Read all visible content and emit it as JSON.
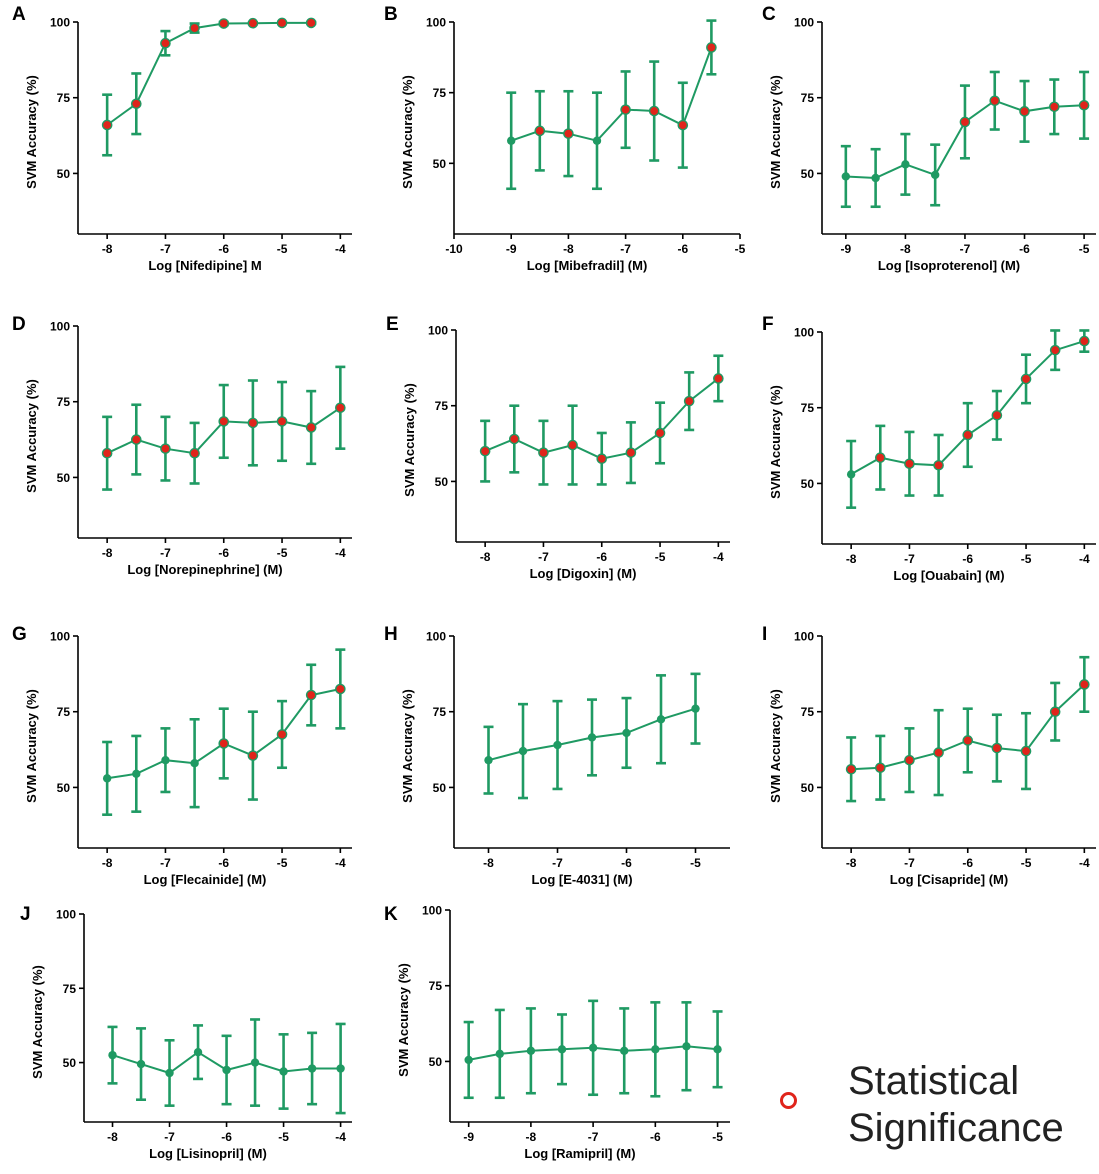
{
  "colors": {
    "line": "#1f9a63",
    "significant_fill": "#e0241b"
  },
  "legend": {
    "label": "Statistical Significance",
    "line1": "Statistical",
    "line2": "Significance"
  },
  "chart_data": [
    {
      "panel": "A",
      "type": "line",
      "xlabel": "Log [Nifedipine] M",
      "ylabel": "SVM Accuracy (%)",
      "xlim": [
        -8.5,
        -3.8
      ],
      "ylim": [
        30,
        100
      ],
      "xticks": [
        -8,
        -7,
        -6,
        -5,
        -4
      ],
      "yticks": [
        50,
        75,
        100
      ],
      "points": [
        {
          "x": -8,
          "y": 66,
          "err": 10,
          "sig": true
        },
        {
          "x": -7.5,
          "y": 73,
          "err": 10,
          "sig": true
        },
        {
          "x": -7,
          "y": 93,
          "err": 4,
          "sig": true
        },
        {
          "x": -6.5,
          "y": 98,
          "err": 1.5,
          "sig": true
        },
        {
          "x": -6,
          "y": 99.5,
          "err": 0.5,
          "sig": true
        },
        {
          "x": -5.5,
          "y": 99.6,
          "err": 0.3,
          "sig": true
        },
        {
          "x": -5,
          "y": 99.7,
          "err": 0.3,
          "sig": true
        },
        {
          "x": -4.5,
          "y": 99.7,
          "err": 0.3,
          "sig": true
        }
      ]
    },
    {
      "panel": "B",
      "type": "line",
      "xlabel": "Log [Mibefradil] (M)",
      "ylabel": "SVM Accuracy (%)",
      "xlim": [
        -10,
        -5
      ],
      "ylim": [
        25,
        100
      ],
      "xticks": [
        -10,
        -9,
        -8,
        -7,
        -6,
        -5
      ],
      "yticks": [
        50,
        75,
        100
      ],
      "points": [
        {
          "x": -9,
          "y": 58,
          "err": 17,
          "sig": false
        },
        {
          "x": -8.5,
          "y": 61.5,
          "err": 14,
          "sig": true
        },
        {
          "x": -8,
          "y": 60.5,
          "err": 15,
          "sig": true
        },
        {
          "x": -7.5,
          "y": 58,
          "err": 17,
          "sig": false
        },
        {
          "x": -7,
          "y": 69,
          "err": 13.5,
          "sig": true
        },
        {
          "x": -6.5,
          "y": 68.5,
          "err": 17.5,
          "sig": true
        },
        {
          "x": -6,
          "y": 63.5,
          "err": 15,
          "sig": true
        },
        {
          "x": -5.5,
          "y": 91,
          "err": 9.5,
          "sig": true
        }
      ]
    },
    {
      "panel": "C",
      "type": "line",
      "xlabel": "Log [Isoproterenol] (M)",
      "ylabel": "SVM Accuracy (%)",
      "xlim": [
        -9.4,
        -4.8
      ],
      "ylim": [
        30,
        100
      ],
      "xticks": [
        -9,
        -8,
        -7,
        -6,
        -5
      ],
      "yticks": [
        50,
        75,
        100
      ],
      "points": [
        {
          "x": -9,
          "y": 49,
          "err": 10,
          "sig": false
        },
        {
          "x": -8.5,
          "y": 48.5,
          "err": 9.5,
          "sig": false
        },
        {
          "x": -8,
          "y": 53,
          "err": 10,
          "sig": false
        },
        {
          "x": -7.5,
          "y": 49.5,
          "err": 10,
          "sig": false
        },
        {
          "x": -7,
          "y": 67,
          "err": 12,
          "sig": true
        },
        {
          "x": -6.5,
          "y": 74,
          "err": 9.5,
          "sig": true
        },
        {
          "x": -6,
          "y": 70.5,
          "err": 10,
          "sig": true
        },
        {
          "x": -5.5,
          "y": 72,
          "err": 9,
          "sig": true
        },
        {
          "x": -5,
          "y": 72.5,
          "err": 11,
          "sig": true
        }
      ]
    },
    {
      "panel": "D",
      "type": "line",
      "xlabel": "Log [Norepinephrine] (M)",
      "ylabel": "SVM Accuracy (%)",
      "xlim": [
        -8.5,
        -3.8
      ],
      "ylim": [
        30,
        100
      ],
      "xticks": [
        -8,
        -7,
        -6,
        -5,
        -4
      ],
      "yticks": [
        50,
        75,
        100
      ],
      "points": [
        {
          "x": -8,
          "y": 58,
          "err": 12,
          "sig": true
        },
        {
          "x": -7.5,
          "y": 62.5,
          "err": 11.5,
          "sig": true
        },
        {
          "x": -7,
          "y": 59.5,
          "err": 10.5,
          "sig": true
        },
        {
          "x": -6.5,
          "y": 58,
          "err": 10,
          "sig": true
        },
        {
          "x": -6,
          "y": 68.5,
          "err": 12,
          "sig": true
        },
        {
          "x": -5.5,
          "y": 68,
          "err": 14,
          "sig": true
        },
        {
          "x": -5,
          "y": 68.5,
          "err": 13,
          "sig": true
        },
        {
          "x": -4.5,
          "y": 66.5,
          "err": 12,
          "sig": true
        },
        {
          "x": -4,
          "y": 73,
          "err": 13.5,
          "sig": true
        }
      ]
    },
    {
      "panel": "E",
      "type": "line",
      "xlabel": "Log [Digoxin] (M)",
      "ylabel": "SVM Accuracy (%)",
      "xlim": [
        -8.5,
        -3.8
      ],
      "ylim": [
        30,
        100
      ],
      "xticks": [
        -8,
        -7,
        -6,
        -5,
        -4
      ],
      "yticks": [
        50,
        75,
        100
      ],
      "points": [
        {
          "x": -8,
          "y": 60,
          "err": 10,
          "sig": true
        },
        {
          "x": -7.5,
          "y": 64,
          "err": 11,
          "sig": true
        },
        {
          "x": -7,
          "y": 59.5,
          "err": 10.5,
          "sig": true
        },
        {
          "x": -6.5,
          "y": 62,
          "err": 13,
          "sig": true
        },
        {
          "x": -6,
          "y": 57.5,
          "err": 8.5,
          "sig": true
        },
        {
          "x": -5.5,
          "y": 59.5,
          "err": 10,
          "sig": true
        },
        {
          "x": -5,
          "y": 66,
          "err": 10,
          "sig": true
        },
        {
          "x": -4.5,
          "y": 76.5,
          "err": 9.5,
          "sig": true
        },
        {
          "x": -4,
          "y": 84,
          "err": 7.5,
          "sig": true
        }
      ]
    },
    {
      "panel": "F",
      "type": "line",
      "xlabel": "Log [Ouabain] (M)",
      "ylabel": "SVM Accuracy (%)",
      "xlim": [
        -8.5,
        -3.8
      ],
      "ylim": [
        30,
        100
      ],
      "xticks": [
        -8,
        -7,
        -6,
        -5,
        -4
      ],
      "yticks": [
        50,
        75,
        100
      ],
      "points": [
        {
          "x": -8,
          "y": 53,
          "err": 11,
          "sig": false
        },
        {
          "x": -7.5,
          "y": 58.5,
          "err": 10.5,
          "sig": true
        },
        {
          "x": -7,
          "y": 56.5,
          "err": 10.5,
          "sig": true
        },
        {
          "x": -6.5,
          "y": 56,
          "err": 10,
          "sig": true
        },
        {
          "x": -6,
          "y": 66,
          "err": 10.5,
          "sig": true
        },
        {
          "x": -5.5,
          "y": 72.5,
          "err": 8,
          "sig": true
        },
        {
          "x": -5,
          "y": 84.5,
          "err": 8,
          "sig": true
        },
        {
          "x": -4.5,
          "y": 94,
          "err": 6.5,
          "sig": true
        },
        {
          "x": -4,
          "y": 97,
          "err": 3.5,
          "sig": true
        }
      ]
    },
    {
      "panel": "G",
      "type": "line",
      "xlabel": "Log [Flecainide] (M)",
      "ylabel": "SVM Accuracy (%)",
      "xlim": [
        -8.5,
        -3.8
      ],
      "ylim": [
        30,
        100
      ],
      "xticks": [
        -8,
        -7,
        -6,
        -5,
        -4
      ],
      "yticks": [
        50,
        75,
        100
      ],
      "points": [
        {
          "x": -8,
          "y": 53,
          "err": 12,
          "sig": false
        },
        {
          "x": -7.5,
          "y": 54.5,
          "err": 12.5,
          "sig": false
        },
        {
          "x": -7,
          "y": 59,
          "err": 10.5,
          "sig": false
        },
        {
          "x": -6.5,
          "y": 58,
          "err": 14.5,
          "sig": false
        },
        {
          "x": -6,
          "y": 64.5,
          "err": 11.5,
          "sig": true
        },
        {
          "x": -5.5,
          "y": 60.5,
          "err": 14.5,
          "sig": true
        },
        {
          "x": -5,
          "y": 67.5,
          "err": 11,
          "sig": true
        },
        {
          "x": -4.5,
          "y": 80.5,
          "err": 10,
          "sig": true
        },
        {
          "x": -4,
          "y": 82.5,
          "err": 13,
          "sig": true
        }
      ]
    },
    {
      "panel": "H",
      "type": "line",
      "xlabel": "Log [E-4031] (M)",
      "ylabel": "SVM Accuracy (%)",
      "xlim": [
        -8.5,
        -4.5
      ],
      "ylim": [
        30,
        100
      ],
      "xticks": [
        -8,
        -7,
        -6,
        -5
      ],
      "yticks": [
        50,
        75,
        100
      ],
      "points": [
        {
          "x": -8,
          "y": 59,
          "err": 11,
          "sig": false
        },
        {
          "x": -7.5,
          "y": 62,
          "err": 15.5,
          "sig": false
        },
        {
          "x": -7,
          "y": 64,
          "err": 14.5,
          "sig": false
        },
        {
          "x": -6.5,
          "y": 66.5,
          "err": 12.5,
          "sig": false
        },
        {
          "x": -6,
          "y": 68,
          "err": 11.5,
          "sig": false
        },
        {
          "x": -5.5,
          "y": 72.5,
          "err": 14.5,
          "sig": false
        },
        {
          "x": -5,
          "y": 76,
          "err": 11.5,
          "sig": false
        }
      ]
    },
    {
      "panel": "I",
      "type": "line",
      "xlabel": "Log [Cisapride] (M)",
      "ylabel": "SVM Accuracy (%)",
      "xlim": [
        -8.5,
        -3.8
      ],
      "ylim": [
        30,
        100
      ],
      "xticks": [
        -8,
        -7,
        -6,
        -5,
        -4
      ],
      "yticks": [
        50,
        75,
        100
      ],
      "points": [
        {
          "x": -8,
          "y": 56,
          "err": 10.5,
          "sig": true
        },
        {
          "x": -7.5,
          "y": 56.5,
          "err": 10.5,
          "sig": true
        },
        {
          "x": -7,
          "y": 59,
          "err": 10.5,
          "sig": true
        },
        {
          "x": -6.5,
          "y": 61.5,
          "err": 14,
          "sig": true
        },
        {
          "x": -6,
          "y": 65.5,
          "err": 10.5,
          "sig": true
        },
        {
          "x": -5.5,
          "y": 63,
          "err": 11,
          "sig": true
        },
        {
          "x": -5,
          "y": 62,
          "err": 12.5,
          "sig": true
        },
        {
          "x": -4.5,
          "y": 75,
          "err": 9.5,
          "sig": true
        },
        {
          "x": -4,
          "y": 84,
          "err": 9,
          "sig": true
        }
      ]
    },
    {
      "panel": "J",
      "type": "line",
      "xlabel": "Log [Lisinopril] (M)",
      "ylabel": "SVM Accuracy (%)",
      "xlim": [
        -8.5,
        -3.8
      ],
      "ylim": [
        30,
        100
      ],
      "xticks": [
        -8,
        -7,
        -6,
        -5,
        -4
      ],
      "yticks": [
        50,
        75,
        100
      ],
      "points": [
        {
          "x": -8,
          "y": 52.5,
          "err": 9.5,
          "sig": false
        },
        {
          "x": -7.5,
          "y": 49.5,
          "err": 12,
          "sig": false
        },
        {
          "x": -7,
          "y": 46.5,
          "err": 11,
          "sig": false
        },
        {
          "x": -6.5,
          "y": 53.5,
          "err": 9,
          "sig": false
        },
        {
          "x": -6,
          "y": 47.5,
          "err": 11.5,
          "sig": false
        },
        {
          "x": -5.5,
          "y": 50,
          "err": 14.5,
          "sig": false
        },
        {
          "x": -5,
          "y": 47,
          "err": 12.5,
          "sig": false
        },
        {
          "x": -4.5,
          "y": 48,
          "err": 12,
          "sig": false
        },
        {
          "x": -4,
          "y": 48,
          "err": 15,
          "sig": false
        }
      ]
    },
    {
      "panel": "K",
      "type": "line",
      "xlabel": "Log [Ramipril] (M)",
      "ylabel": "SVM Accuracy (%)",
      "xlim": [
        -9.3,
        -4.8
      ],
      "ylim": [
        30,
        100
      ],
      "xticks": [
        -9,
        -8,
        -7,
        -6,
        -5
      ],
      "yticks": [
        50,
        75,
        100
      ],
      "points": [
        {
          "x": -9,
          "y": 50.5,
          "err": 12.5,
          "sig": false
        },
        {
          "x": -8.5,
          "y": 52.5,
          "err": 14.5,
          "sig": false
        },
        {
          "x": -8,
          "y": 53.5,
          "err": 14,
          "sig": false
        },
        {
          "x": -7.5,
          "y": 54,
          "err": 11.5,
          "sig": false
        },
        {
          "x": -7,
          "y": 54.5,
          "err": 15.5,
          "sig": false
        },
        {
          "x": -6.5,
          "y": 53.5,
          "err": 14,
          "sig": false
        },
        {
          "x": -6,
          "y": 54,
          "err": 15.5,
          "sig": false
        },
        {
          "x": -5.5,
          "y": 55,
          "err": 14.5,
          "sig": false
        },
        {
          "x": -5,
          "y": 54,
          "err": 12.5,
          "sig": false
        }
      ]
    }
  ]
}
